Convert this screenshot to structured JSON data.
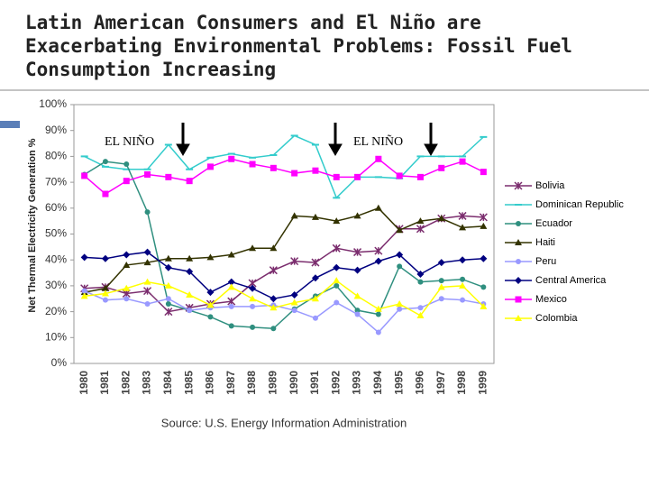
{
  "chart_data": {
    "type": "line",
    "title": "Latin American Consumers and El Niño are Exacerbating Environmental Problems: Fossil Fuel Consumption Increasing",
    "ylabel": "Net Thermal Electricity Generation %",
    "source": "Source: U.S. Energy Information Administration",
    "annotations": [
      "EL NIÑO",
      "EL NIÑO"
    ],
    "categories": [
      "1980",
      "1981",
      "1982",
      "1983",
      "1984",
      "1985",
      "1986",
      "1987",
      "1988",
      "1989",
      "1990",
      "1991",
      "1992",
      "1993",
      "1994",
      "1995",
      "1996",
      "1997",
      "1998",
      "1999"
    ],
    "ylim": [
      0,
      100
    ],
    "yticks": [
      {
        "value": 0,
        "label": "0%"
      },
      {
        "value": 10,
        "label": "10%"
      },
      {
        "value": 20,
        "label": "20%"
      },
      {
        "value": 30,
        "label": "30%"
      },
      {
        "value": 40,
        "label": "40%"
      },
      {
        "value": 50,
        "label": "50%"
      },
      {
        "value": 60,
        "label": "60%"
      },
      {
        "value": 70,
        "label": "70%"
      },
      {
        "value": 80,
        "label": "80%"
      },
      {
        "value": 90,
        "label": "90%"
      },
      {
        "value": 100,
        "label": "100%"
      }
    ],
    "grid": false,
    "legend": "right",
    "series": [
      {
        "name": "Bolivia",
        "color": "#7b2d6e",
        "marker": "asterisk",
        "values": [
          29,
          29.5,
          27,
          28,
          20,
          21.5,
          23,
          24,
          31,
          36,
          39.5,
          39,
          44.5,
          43,
          43.5,
          52,
          52,
          56,
          57,
          56.5
        ]
      },
      {
        "name": "Dominican Republic",
        "color": "#33cccc",
        "marker": "dash",
        "values": [
          80,
          76,
          75,
          75,
          84.5,
          75,
          79.5,
          81,
          79.5,
          80.5,
          88,
          84.5,
          64,
          72,
          72,
          71.5,
          80,
          80,
          80,
          87.5
        ]
      },
      {
        "name": "Ecuador",
        "color": "#2f8f7f",
        "marker": "circle",
        "values": [
          73,
          78,
          77,
          58.5,
          23,
          20.5,
          18,
          14.5,
          14,
          13.5,
          21,
          26,
          30,
          20.5,
          19,
          37.5,
          31.5,
          32,
          32.5,
          29.5
        ]
      },
      {
        "name": "Haiti",
        "color": "#333300",
        "marker": "triangle",
        "values": [
          27.5,
          29,
          38,
          39,
          40.5,
          40.5,
          41,
          42,
          44.5,
          44.5,
          57,
          56.5,
          55,
          57,
          60,
          51.5,
          55,
          56,
          52.5,
          53
        ]
      },
      {
        "name": "Peru",
        "color": "#9999ff",
        "marker": "circle",
        "values": [
          28,
          24.5,
          25,
          23,
          25,
          20.5,
          21.5,
          22,
          22,
          22.5,
          20.5,
          17.5,
          23.5,
          19,
          12,
          21,
          21.5,
          25,
          24.5,
          23
        ]
      },
      {
        "name": "Central America",
        "color": "#000080",
        "marker": "diamond",
        "values": [
          41,
          40.5,
          42,
          43,
          37,
          35.5,
          27.5,
          31.5,
          29,
          25,
          26.5,
          33,
          37,
          36,
          39.5,
          42,
          34.5,
          39,
          40,
          40.5
        ]
      },
      {
        "name": "Mexico",
        "color": "#ff00ff",
        "marker": "square",
        "values": [
          72.5,
          65.5,
          70.5,
          73,
          72,
          70.5,
          76,
          79,
          77,
          75.5,
          73.5,
          74.5,
          72,
          72,
          79,
          72.5,
          72,
          75.5,
          78,
          74
        ]
      },
      {
        "name": "Colombia",
        "color": "#ffff00",
        "marker": "triangle",
        "values": [
          26,
          27,
          29,
          31.5,
          30,
          26.5,
          22.5,
          29.5,
          25,
          21.5,
          23.5,
          25,
          32,
          26,
          21,
          23,
          18.5,
          29.5,
          30,
          22
        ]
      }
    ]
  }
}
